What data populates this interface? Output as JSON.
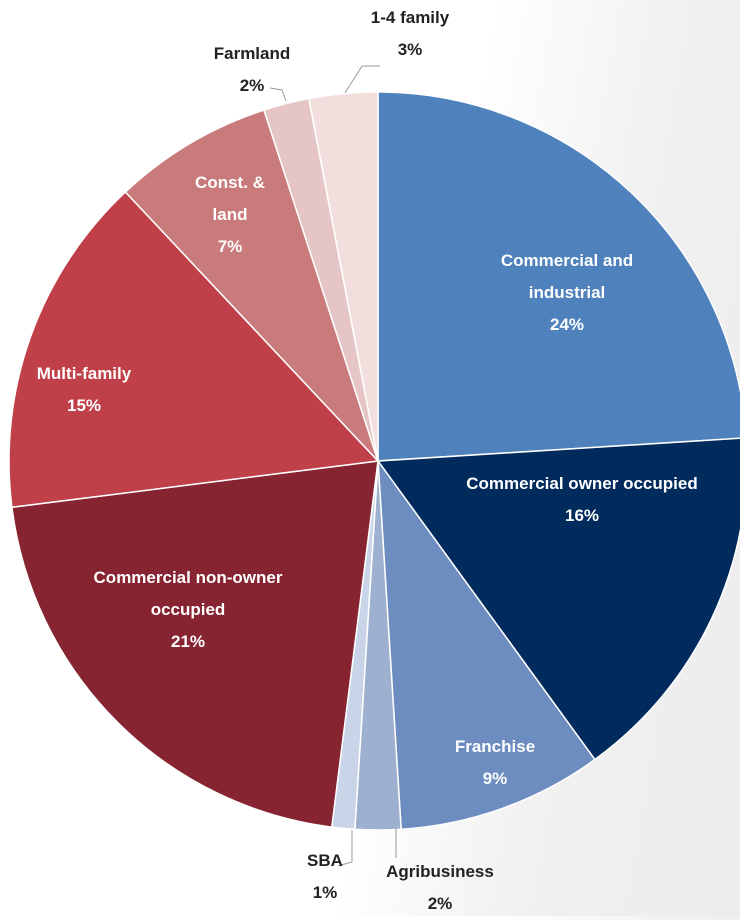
{
  "chart_data": {
    "type": "pie",
    "categories": [
      "Commercial and industrial",
      "Commercial owner occupied",
      "Franchise",
      "Agribusiness",
      "SBA",
      "Commercial non-owner occupied",
      "Multi-family",
      "Const. & land",
      "Farmland",
      "1-4 family"
    ],
    "values": [
      24,
      16,
      9,
      2,
      1,
      21,
      15,
      7,
      2,
      3
    ],
    "value_labels": [
      "24%",
      "16%",
      "9%",
      "2%",
      "1%",
      "21%",
      "15%",
      "7%",
      "2%",
      "3%"
    ],
    "colors": [
      "#4f81bd",
      "#002b5c",
      "#6d8cc0",
      "#9eb0d0",
      "#c9d4e8",
      "#862431",
      "#c0404a",
      "#c97b7b",
      "#e5c5c5",
      "#f3dede"
    ]
  }
}
